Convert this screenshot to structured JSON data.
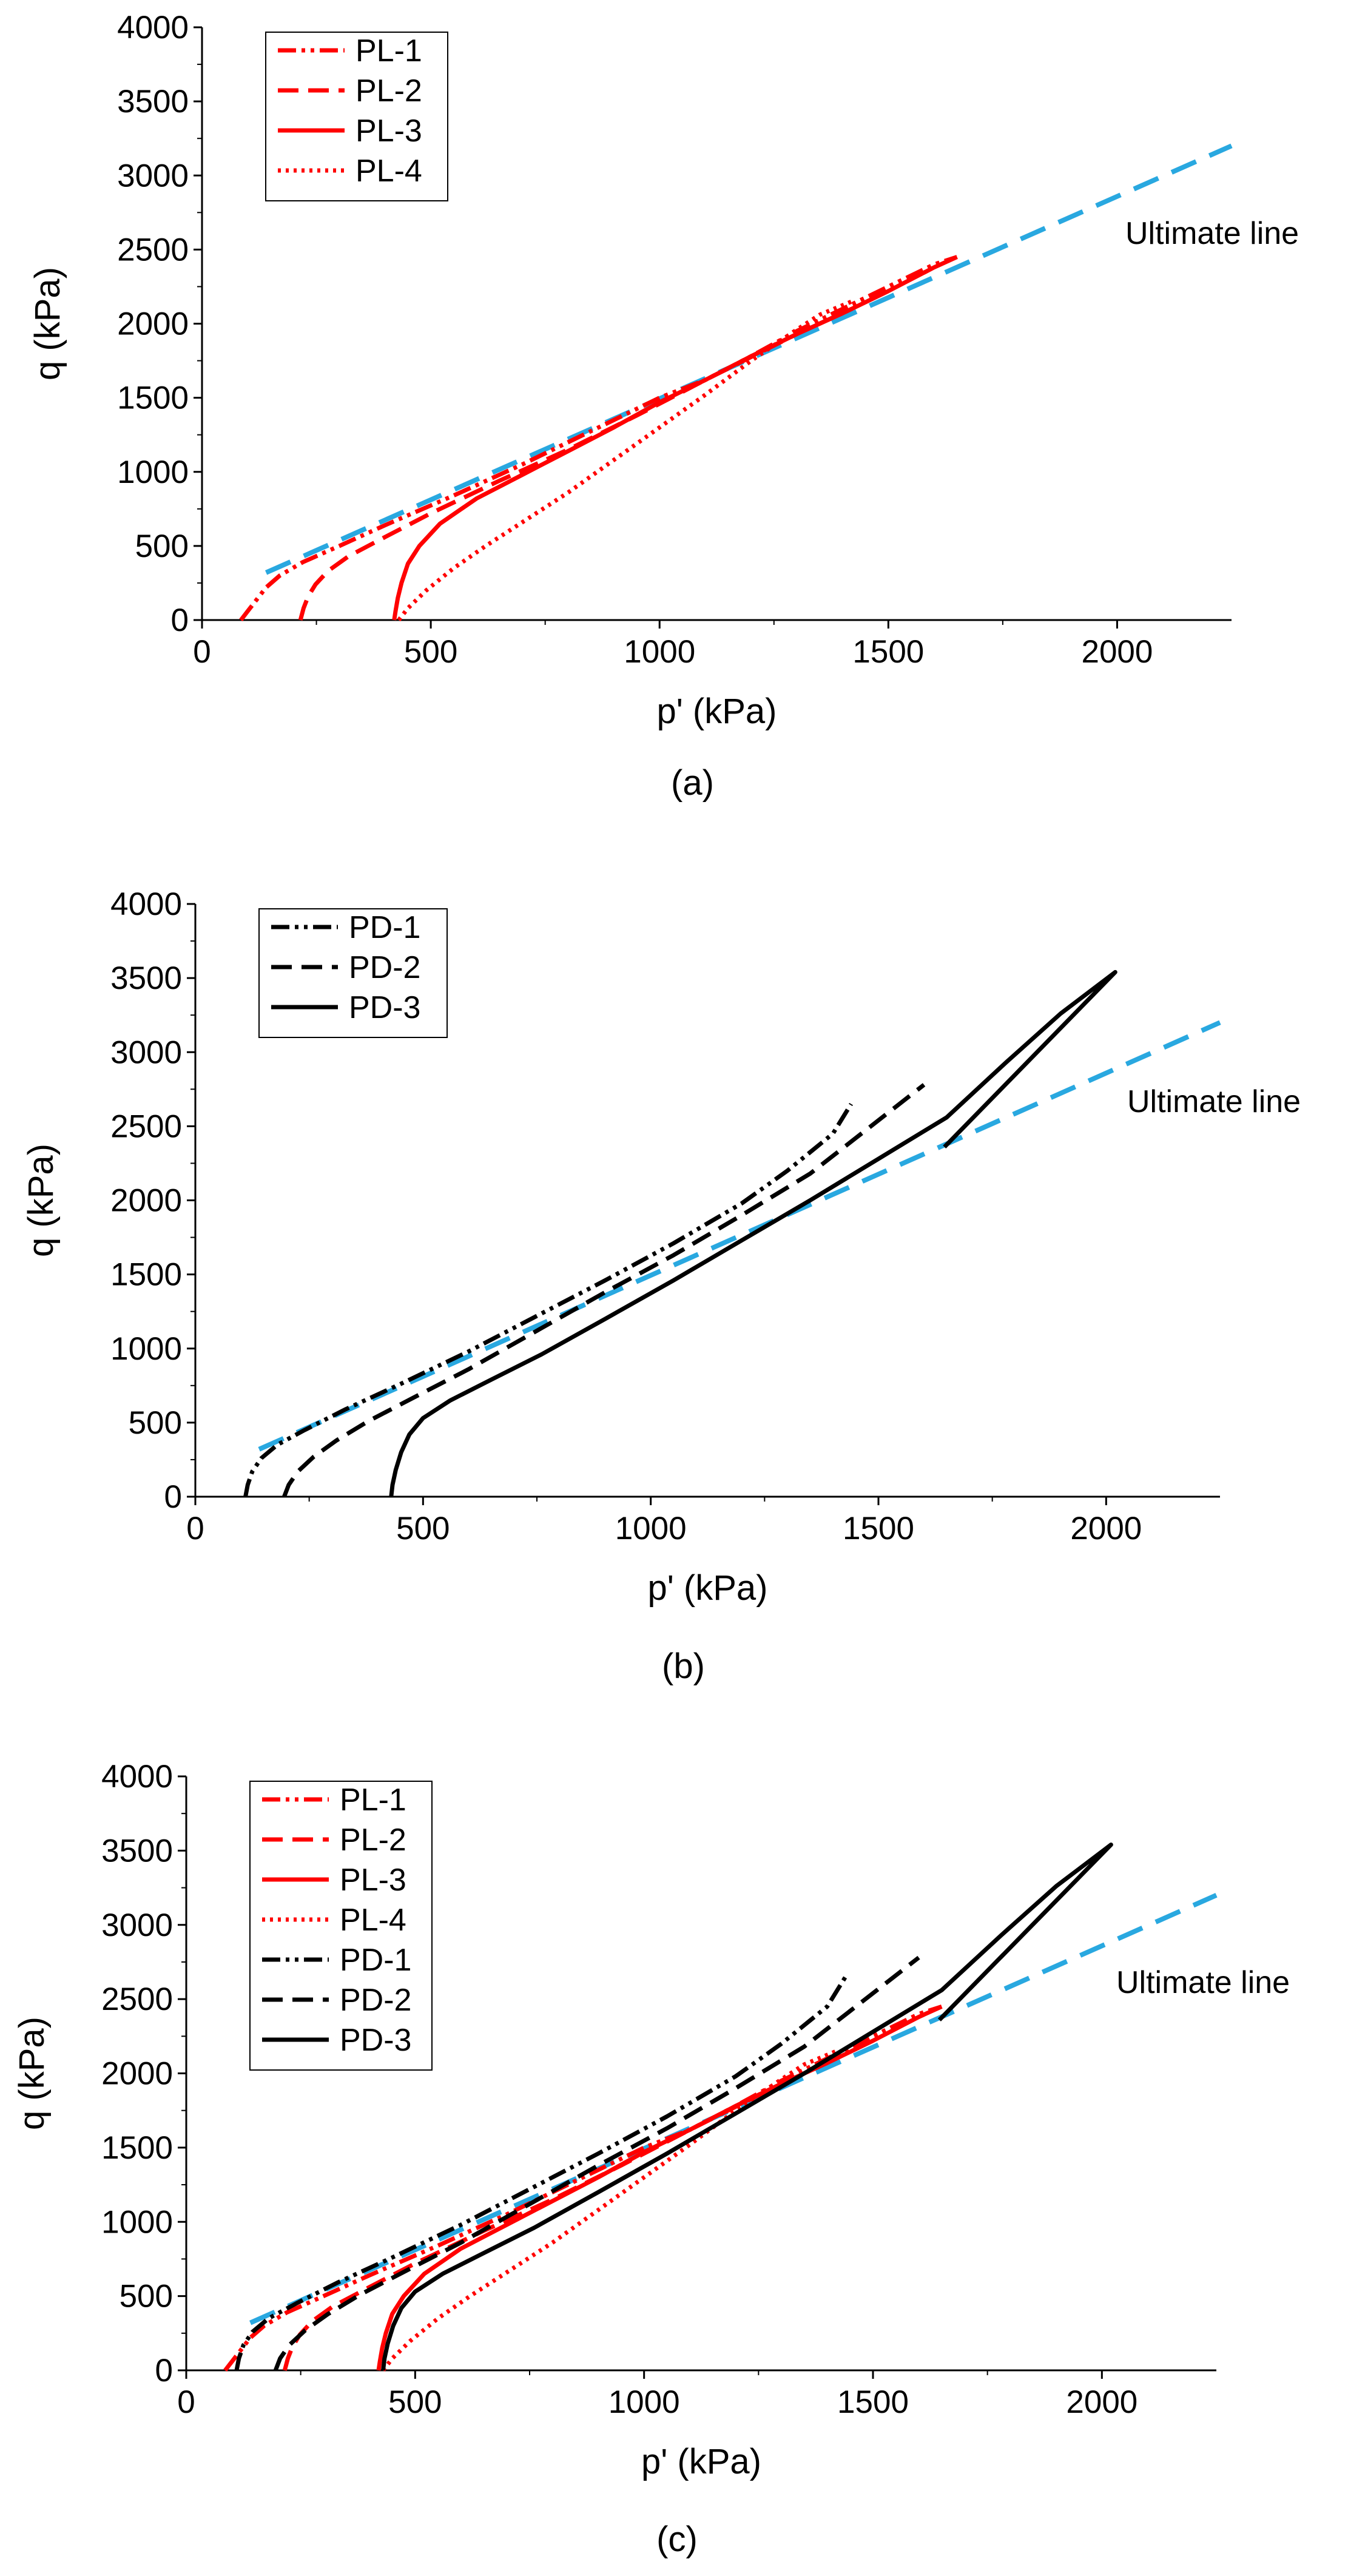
{
  "chart_data": [
    {
      "type": "line",
      "caption": "(a)",
      "xlabel": "p' (kPa)",
      "ylabel": "q (kPa)",
      "xlim": [
        0,
        2250
      ],
      "ylim": [
        0,
        4000
      ],
      "xticks": [
        0,
        500,
        1000,
        1500,
        2000
      ],
      "yticks": [
        0,
        500,
        1000,
        1500,
        2000,
        2500,
        3000,
        3500,
        4000
      ],
      "legend_position": "top-left",
      "annotation": "Ultimate line",
      "ultimate_line": {
        "color": "#29a8e0",
        "points": [
          [
            140,
            320
          ],
          [
            2250,
            3200
          ]
        ]
      },
      "series": [
        {
          "name": "PL-1",
          "color": "#ff0000",
          "dash": "dashdotdot",
          "points": [
            [
              85,
              0
            ],
            [
              100,
              60
            ],
            [
              120,
              140
            ],
            [
              140,
              220
            ],
            [
              170,
              300
            ],
            [
              220,
              390
            ],
            [
              300,
              500
            ],
            [
              400,
              640
            ],
            [
              550,
              840
            ],
            [
              700,
              1050
            ],
            [
              900,
              1350
            ],
            [
              1000,
              1500
            ],
            [
              1100,
              1620
            ],
            [
              1200,
              1780
            ],
            [
              1300,
              1950
            ],
            [
              1400,
              2100
            ],
            [
              1500,
              2250
            ],
            [
              1600,
              2400
            ],
            [
              1650,
              2450
            ]
          ]
        },
        {
          "name": "PL-2",
          "color": "#ff0000",
          "dash": "dash",
          "points": [
            [
              215,
              0
            ],
            [
              222,
              80
            ],
            [
              232,
              160
            ],
            [
              248,
              240
            ],
            [
              275,
              330
            ],
            [
              320,
              430
            ],
            [
              400,
              560
            ],
            [
              500,
              720
            ],
            [
              650,
              940
            ],
            [
              800,
              1150
            ],
            [
              950,
              1380
            ],
            [
              1100,
              1620
            ],
            [
              1300,
              1930
            ],
            [
              1420,
              2100
            ]
          ]
        },
        {
          "name": "PL-3",
          "color": "#ff0000",
          "dash": "solid",
          "points": [
            [
              420,
              0
            ],
            [
              423,
              60
            ],
            [
              428,
              150
            ],
            [
              436,
              250
            ],
            [
              450,
              380
            ],
            [
              475,
              500
            ],
            [
              520,
              650
            ],
            [
              600,
              820
            ],
            [
              700,
              980
            ],
            [
              800,
              1140
            ],
            [
              900,
              1300
            ],
            [
              1000,
              1470
            ],
            [
              1100,
              1620
            ],
            [
              1200,
              1780
            ],
            [
              1300,
              1930
            ],
            [
              1400,
              2070
            ],
            [
              1500,
              2220
            ],
            [
              1600,
              2380
            ],
            [
              1650,
              2450
            ]
          ]
        },
        {
          "name": "PL-4",
          "color": "#ff0000",
          "dash": "dot",
          "points": [
            [
              430,
              0
            ],
            [
              450,
              80
            ],
            [
              490,
              200
            ],
            [
              550,
              350
            ],
            [
              620,
              500
            ],
            [
              700,
              660
            ],
            [
              800,
              860
            ],
            [
              900,
              1080
            ],
            [
              1000,
              1300
            ],
            [
              1100,
              1520
            ],
            [
              1200,
              1750
            ],
            [
              1300,
              1960
            ],
            [
              1350,
              2060
            ],
            [
              1420,
              2150
            ]
          ]
        }
      ]
    },
    {
      "type": "line",
      "caption": "(b)",
      "xlabel": "p' (kPa)",
      "ylabel": "q (kPa)",
      "xlim": [
        0,
        2250
      ],
      "ylim": [
        0,
        4000
      ],
      "xticks": [
        0,
        500,
        1000,
        1500,
        2000
      ],
      "yticks": [
        0,
        500,
        1000,
        1500,
        2000,
        2500,
        3000,
        3500,
        4000
      ],
      "legend_position": "top-left",
      "annotation": "Ultimate line",
      "ultimate_line": {
        "color": "#29a8e0",
        "points": [
          [
            140,
            320
          ],
          [
            2250,
            3200
          ]
        ]
      },
      "series": [
        {
          "name": "PD-1",
          "color": "#000000",
          "dash": "dashdotdot",
          "points": [
            [
              110,
              0
            ],
            [
              115,
              80
            ],
            [
              125,
              170
            ],
            [
              145,
              260
            ],
            [
              180,
              350
            ],
            [
              240,
              450
            ],
            [
              330,
              590
            ],
            [
              450,
              760
            ],
            [
              600,
              980
            ],
            [
              750,
              1220
            ],
            [
              900,
              1460
            ],
            [
              1050,
              1710
            ],
            [
              1200,
              1980
            ],
            [
              1300,
              2200
            ],
            [
              1400,
              2450
            ],
            [
              1440,
              2650
            ]
          ]
        },
        {
          "name": "PD-2",
          "color": "#000000",
          "dash": "dash",
          "points": [
            [
              195,
              0
            ],
            [
              205,
              80
            ],
            [
              225,
              170
            ],
            [
              260,
              270
            ],
            [
              310,
              380
            ],
            [
              380,
              510
            ],
            [
              480,
              670
            ],
            [
              600,
              860
            ],
            [
              750,
              1120
            ],
            [
              900,
              1380
            ],
            [
              1050,
              1630
            ],
            [
              1200,
              1900
            ],
            [
              1350,
              2180
            ],
            [
              1450,
              2420
            ],
            [
              1600,
              2780
            ]
          ]
        },
        {
          "name": "PD-3",
          "color": "#000000",
          "dash": "solid",
          "points": [
            [
              430,
              0
            ],
            [
              433,
              80
            ],
            [
              440,
              180
            ],
            [
              452,
              300
            ],
            [
              470,
              420
            ],
            [
              500,
              530
            ],
            [
              560,
              650
            ],
            [
              650,
              790
            ],
            [
              760,
              960
            ],
            [
              900,
              1200
            ],
            [
              1050,
              1460
            ],
            [
              1200,
              1730
            ],
            [
              1350,
              2000
            ],
            [
              1500,
              2280
            ],
            [
              1650,
              2560
            ],
            [
              1780,
              2930
            ],
            [
              1900,
              3260
            ],
            [
              2020,
              3540
            ],
            [
              1645,
              2360
            ]
          ]
        }
      ]
    },
    {
      "type": "line",
      "caption": "(c)",
      "xlabel": "p' (kPa)",
      "ylabel": "q (kPa)",
      "xlim": [
        0,
        2250
      ],
      "ylim": [
        0,
        4000
      ],
      "xticks": [
        0,
        500,
        1000,
        1500,
        2000
      ],
      "yticks": [
        0,
        500,
        1000,
        1500,
        2000,
        2500,
        3000,
        3500,
        4000
      ],
      "legend_position": "top-left",
      "annotation": "Ultimate line",
      "ultimate_line": {
        "color": "#29a8e0",
        "points": [
          [
            140,
            320
          ],
          [
            2250,
            3200
          ]
        ]
      },
      "series": [
        {
          "name": "PL-1",
          "color": "#ff0000",
          "dash": "dashdotdot",
          "points": [
            [
              85,
              0
            ],
            [
              100,
              60
            ],
            [
              120,
              140
            ],
            [
              140,
              220
            ],
            [
              170,
              300
            ],
            [
              220,
              390
            ],
            [
              300,
              500
            ],
            [
              400,
              640
            ],
            [
              550,
              840
            ],
            [
              700,
              1050
            ],
            [
              900,
              1350
            ],
            [
              1000,
              1500
            ],
            [
              1100,
              1620
            ],
            [
              1200,
              1780
            ],
            [
              1300,
              1950
            ],
            [
              1400,
              2100
            ],
            [
              1500,
              2250
            ],
            [
              1600,
              2400
            ],
            [
              1650,
              2450
            ]
          ]
        },
        {
          "name": "PL-2",
          "color": "#ff0000",
          "dash": "dash",
          "points": [
            [
              215,
              0
            ],
            [
              222,
              80
            ],
            [
              232,
              160
            ],
            [
              248,
              240
            ],
            [
              275,
              330
            ],
            [
              320,
              430
            ],
            [
              400,
              560
            ],
            [
              500,
              720
            ],
            [
              650,
              940
            ],
            [
              800,
              1150
            ],
            [
              950,
              1380
            ],
            [
              1100,
              1620
            ],
            [
              1300,
              1930
            ],
            [
              1420,
              2100
            ]
          ]
        },
        {
          "name": "PL-3",
          "color": "#ff0000",
          "dash": "solid",
          "points": [
            [
              420,
              0
            ],
            [
              423,
              60
            ],
            [
              428,
              150
            ],
            [
              436,
              250
            ],
            [
              450,
              380
            ],
            [
              475,
              500
            ],
            [
              520,
              650
            ],
            [
              600,
              820
            ],
            [
              700,
              980
            ],
            [
              800,
              1140
            ],
            [
              900,
              1300
            ],
            [
              1000,
              1470
            ],
            [
              1100,
              1620
            ],
            [
              1200,
              1780
            ],
            [
              1300,
              1930
            ],
            [
              1400,
              2070
            ],
            [
              1500,
              2220
            ],
            [
              1600,
              2380
            ],
            [
              1650,
              2450
            ]
          ]
        },
        {
          "name": "PL-4",
          "color": "#ff0000",
          "dash": "dot",
          "points": [
            [
              430,
              0
            ],
            [
              450,
              80
            ],
            [
              490,
              200
            ],
            [
              550,
              350
            ],
            [
              620,
              500
            ],
            [
              700,
              660
            ],
            [
              800,
              860
            ],
            [
              900,
              1080
            ],
            [
              1000,
              1300
            ],
            [
              1100,
              1520
            ],
            [
              1200,
              1750
            ],
            [
              1300,
              1960
            ],
            [
              1350,
              2060
            ],
            [
              1420,
              2150
            ]
          ]
        },
        {
          "name": "PD-1",
          "color": "#000000",
          "dash": "dashdotdot",
          "points": [
            [
              110,
              0
            ],
            [
              115,
              80
            ],
            [
              125,
              170
            ],
            [
              145,
              260
            ],
            [
              180,
              350
            ],
            [
              240,
              450
            ],
            [
              330,
              590
            ],
            [
              450,
              760
            ],
            [
              600,
              980
            ],
            [
              750,
              1220
            ],
            [
              900,
              1460
            ],
            [
              1050,
              1710
            ],
            [
              1200,
              1980
            ],
            [
              1300,
              2200
            ],
            [
              1400,
              2450
            ],
            [
              1440,
              2650
            ]
          ]
        },
        {
          "name": "PD-2",
          "color": "#000000",
          "dash": "dash",
          "points": [
            [
              195,
              0
            ],
            [
              205,
              80
            ],
            [
              225,
              170
            ],
            [
              260,
              270
            ],
            [
              310,
              380
            ],
            [
              380,
              510
            ],
            [
              480,
              670
            ],
            [
              600,
              860
            ],
            [
              750,
              1120
            ],
            [
              900,
              1380
            ],
            [
              1050,
              1630
            ],
            [
              1200,
              1900
            ],
            [
              1350,
              2180
            ],
            [
              1450,
              2420
            ],
            [
              1600,
              2780
            ]
          ]
        },
        {
          "name": "PD-3",
          "color": "#000000",
          "dash": "solid",
          "points": [
            [
              430,
              0
            ],
            [
              433,
              80
            ],
            [
              440,
              180
            ],
            [
              452,
              300
            ],
            [
              470,
              420
            ],
            [
              500,
              530
            ],
            [
              560,
              650
            ],
            [
              650,
              790
            ],
            [
              760,
              960
            ],
            [
              900,
              1200
            ],
            [
              1050,
              1460
            ],
            [
              1200,
              1730
            ],
            [
              1350,
              2000
            ],
            [
              1500,
              2280
            ],
            [
              1650,
              2560
            ],
            [
              1780,
              2930
            ],
            [
              1900,
              3260
            ],
            [
              2020,
              3540
            ],
            [
              1645,
              2360
            ]
          ]
        }
      ]
    }
  ]
}
